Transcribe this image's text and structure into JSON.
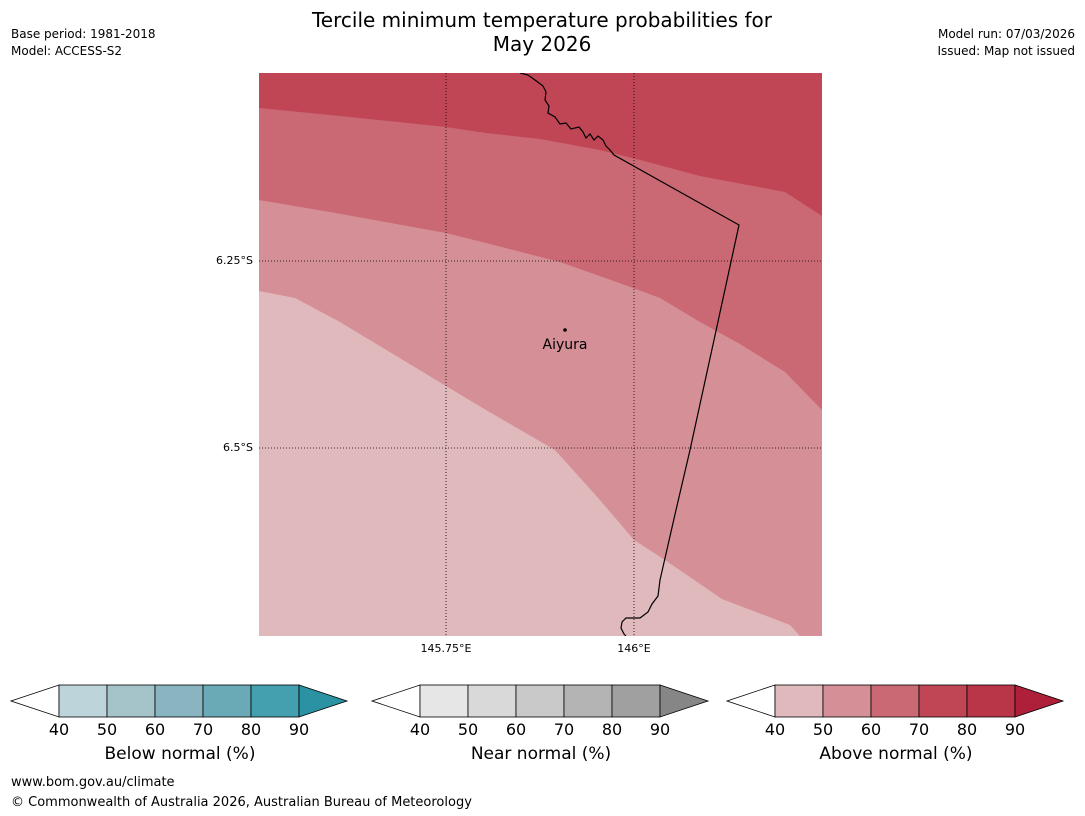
{
  "title": {
    "line1": "Tercile minimum temperature probabilities for",
    "line2": "May 2026"
  },
  "meta": {
    "base_period": "Base period: 1981-2018",
    "model": "Model: ACCESS-S2",
    "model_run": "Model run: 07/03/2026",
    "issued": "Issued: Map not issued"
  },
  "map": {
    "lat_labels": [
      "6.25°S",
      "6.5°S"
    ],
    "lon_labels": [
      "145.75°E",
      "146°E"
    ],
    "place": "Aiyura",
    "band_colors": {
      "above_40": "#e0b9bd",
      "above_50": "#d58f96",
      "above_60": "#ca6973",
      "above_70": "#c04655"
    }
  },
  "colorbars": [
    {
      "title": "Below normal (%)",
      "ticks": [
        "40",
        "50",
        "60",
        "70",
        "80",
        "90"
      ],
      "colors": [
        "#ffffff",
        "#bdd4da",
        "#a4c4ca",
        "#88b5c0",
        "#6aaab7",
        "#44a0ae",
        "#2a92a3"
      ]
    },
    {
      "title": "Near normal (%)",
      "ticks": [
        "40",
        "50",
        "60",
        "70",
        "80",
        "90"
      ],
      "colors": [
        "#ffffff",
        "#e6e6e6",
        "#d9d9d9",
        "#c9c9c9",
        "#b4b4b4",
        "#a0a0a0",
        "#868686"
      ]
    },
    {
      "title": "Above normal (%)",
      "ticks": [
        "40",
        "50",
        "60",
        "70",
        "80",
        "90"
      ],
      "colors": [
        "#ffffff",
        "#e0b9bd",
        "#d58f96",
        "#ca6973",
        "#c04655",
        "#b93548",
        "#ae1f3a"
      ]
    }
  ],
  "footer": {
    "url": "www.bom.gov.au/climate",
    "copyright": "© Commonwealth of Australia 2026, Australian Bureau of Meteorology"
  }
}
